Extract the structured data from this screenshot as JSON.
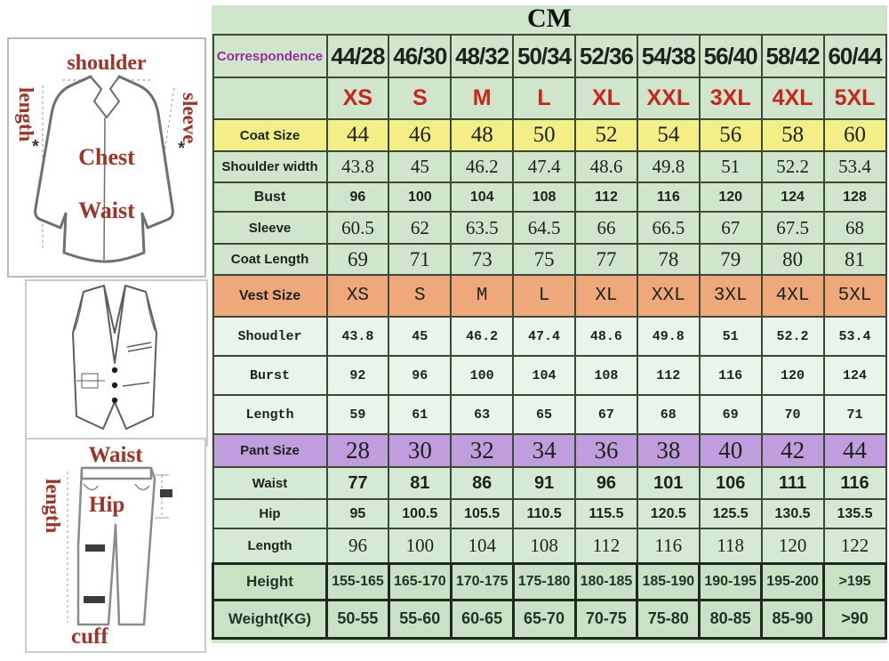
{
  "title": "CM",
  "colors": {
    "panel_green": "#cfe6cd",
    "coat_row_yellow": "#f3ef86",
    "vest_row_orange": "#efa87a",
    "pant_row_purple": "#c09ddd",
    "size_red": "#c8251d",
    "correspondence_purple": "#962d9b"
  },
  "illustrations": {
    "jacket": {
      "shoulder": "shoulder",
      "length": "length",
      "sleeve": "sleeve",
      "chest": "Chest",
      "waist": "Waist",
      "mark_left": "*",
      "mark_right": "*"
    },
    "pants": {
      "waist": "Waist",
      "length": "length",
      "hip": "Hip",
      "cuff": "cuff"
    }
  },
  "chart_data": {
    "type": "table",
    "title": "CM",
    "rows": [
      {
        "label": "Correspondence",
        "style": "corr",
        "values": [
          "44/28",
          "46/30",
          "48/32",
          "50/34",
          "52/36",
          "54/38",
          "56/40",
          "58/42",
          "60/44"
        ]
      },
      {
        "label": "",
        "style": "sizes",
        "values": [
          "XS",
          "S",
          "M",
          "L",
          "XL",
          "XXL",
          "3XL",
          "4XL",
          "5XL"
        ]
      },
      {
        "label": "Coat Size",
        "style": "coat-size",
        "values": [
          "44",
          "46",
          "48",
          "50",
          "52",
          "54",
          "56",
          "58",
          "60"
        ]
      },
      {
        "label": "Shoulder width",
        "style": "shoulder",
        "values": [
          "43.8",
          "45",
          "46.2",
          "47.4",
          "48.6",
          "49.8",
          "51",
          "52.2",
          "53.4"
        ]
      },
      {
        "label": "Bust",
        "style": "bust",
        "values": [
          "96",
          "100",
          "104",
          "108",
          "112",
          "116",
          "120",
          "124",
          "128"
        ]
      },
      {
        "label": "Sleeve",
        "style": "sleeve",
        "values": [
          "60.5",
          "62",
          "63.5",
          "64.5",
          "66",
          "66.5",
          "67",
          "67.5",
          "68"
        ]
      },
      {
        "label": "Coat Length",
        "style": "coat-length",
        "values": [
          "69",
          "71",
          "73",
          "75",
          "77",
          "78",
          "79",
          "80",
          "81"
        ]
      },
      {
        "label": "Vest Size",
        "style": "vest-size",
        "values": [
          "XS",
          "S",
          "M",
          "L",
          "XL",
          "XXL",
          "3XL",
          "4XL",
          "5XL"
        ]
      },
      {
        "label": "Shoudler",
        "style": "vest-row",
        "values": [
          "43.8",
          "45",
          "46.2",
          "47.4",
          "48.6",
          "49.8",
          "51",
          "52.2",
          "53.4"
        ]
      },
      {
        "label": "Burst",
        "style": "vest-row",
        "values": [
          "92",
          "96",
          "100",
          "104",
          "108",
          "112",
          "116",
          "120",
          "124"
        ]
      },
      {
        "label": "Length",
        "style": "vest-row",
        "values": [
          "59",
          "61",
          "63",
          "65",
          "67",
          "68",
          "69",
          "70",
          "71"
        ]
      },
      {
        "label": "Pant Size",
        "style": "pant-size",
        "values": [
          "28",
          "30",
          "32",
          "34",
          "36",
          "38",
          "40",
          "42",
          "44"
        ]
      },
      {
        "label": "Waist",
        "style": "waist",
        "values": [
          "77",
          "81",
          "86",
          "91",
          "96",
          "101",
          "106",
          "111",
          "116"
        ]
      },
      {
        "label": "Hip",
        "style": "hip",
        "values": [
          "95",
          "100.5",
          "105.5",
          "110.5",
          "115.5",
          "120.5",
          "125.5",
          "130.5",
          "135.5"
        ]
      },
      {
        "label": "Length",
        "style": "pant-length",
        "values": [
          "96",
          "100",
          "104",
          "108",
          "112",
          "116",
          "118",
          "120",
          "122"
        ]
      },
      {
        "label": "Height",
        "style": "height",
        "values": [
          "155-165",
          "165-170",
          "170-175",
          "175-180",
          "180-185",
          "185-190",
          "190-195",
          "195-200",
          ">195"
        ]
      },
      {
        "label": "Weight(KG)",
        "style": "weight",
        "values": [
          "50-55",
          "55-60",
          "60-65",
          "65-70",
          "70-75",
          "75-80",
          "80-85",
          "85-90",
          ">90"
        ]
      }
    ]
  }
}
